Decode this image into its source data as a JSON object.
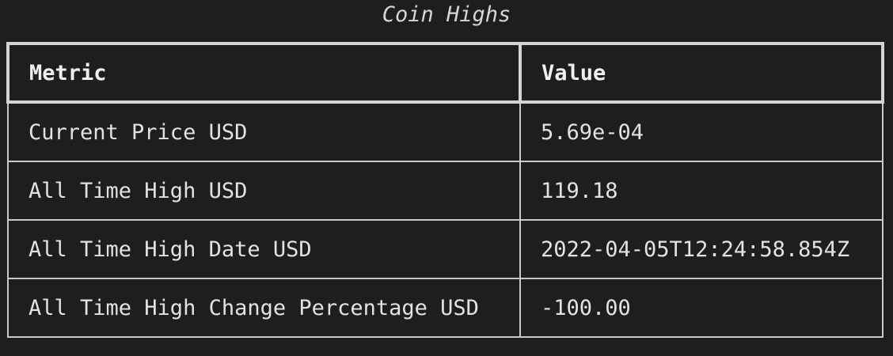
{
  "table": {
    "title": "Coin Highs",
    "columns": [
      "Metric",
      "Value"
    ],
    "rows": [
      {
        "metric": "Current Price USD",
        "value": "5.69e-04"
      },
      {
        "metric": "All Time High USD",
        "value": "119.18"
      },
      {
        "metric": "All Time High Date USD",
        "value": "2022-04-05T12:24:58.854Z"
      },
      {
        "metric": "All Time High Change Percentage USD",
        "value": "-100.00"
      }
    ]
  }
}
